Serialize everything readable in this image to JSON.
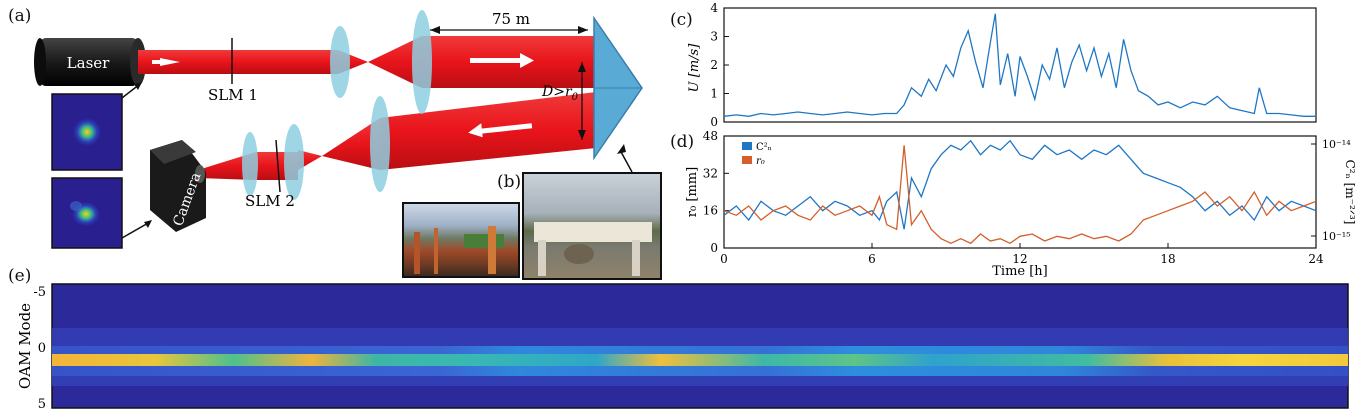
{
  "panels": {
    "a": "(a)",
    "b": "(b)",
    "c": "(c)",
    "d": "(d)",
    "e": "(e)"
  },
  "setup": {
    "laser_label": "Laser",
    "camera_label": "Camera",
    "slm1_label": "SLM 1",
    "slm2_label": "SLM 2",
    "distance_label": "75 m",
    "aperture_label": "D>r",
    "aperture_sub": "0",
    "beam_color": "#e8141b",
    "lens_color": "#8ecfe0",
    "prism_color": "#5aaad6"
  },
  "chart_data": [
    {
      "id": "c",
      "type": "line",
      "ylabel": "U [m/s]",
      "xlim": [
        0,
        24
      ],
      "ylim": [
        0,
        4
      ],
      "yticks": [
        "0",
        "1",
        "2",
        "3",
        "4"
      ],
      "color": "#1f77c4",
      "x": [
        0,
        0.5,
        1,
        1.5,
        2,
        2.5,
        3,
        3.5,
        4,
        4.5,
        5,
        5.5,
        6,
        6.5,
        7,
        7.3,
        7.6,
        8,
        8.3,
        8.6,
        9,
        9.3,
        9.6,
        9.9,
        10.2,
        10.5,
        10.8,
        11,
        11.2,
        11.5,
        11.8,
        12,
        12.3,
        12.6,
        12.9,
        13.2,
        13.5,
        13.8,
        14.1,
        14.4,
        14.7,
        15,
        15.3,
        15.6,
        15.9,
        16.2,
        16.5,
        16.8,
        17.2,
        17.6,
        18,
        18.5,
        19,
        19.5,
        20,
        20.5,
        21,
        21.5,
        21.7,
        22,
        22.5,
        23,
        23.5,
        24
      ],
      "y": [
        0.2,
        0.25,
        0.2,
        0.3,
        0.25,
        0.3,
        0.35,
        0.3,
        0.25,
        0.3,
        0.35,
        0.3,
        0.25,
        0.3,
        0.3,
        0.6,
        1.2,
        0.9,
        1.5,
        1.1,
        2.0,
        1.6,
        2.6,
        3.2,
        2.1,
        1.2,
        2.8,
        3.8,
        1.3,
        2.4,
        0.9,
        2.3,
        1.6,
        0.8,
        2.0,
        1.5,
        2.6,
        1.2,
        2.1,
        2.7,
        1.8,
        2.6,
        1.6,
        2.4,
        1.2,
        2.9,
        1.8,
        1.1,
        0.9,
        0.6,
        0.7,
        0.5,
        0.7,
        0.6,
        0.9,
        0.5,
        0.4,
        0.3,
        1.2,
        0.3,
        0.3,
        0.25,
        0.2,
        0.2
      ]
    },
    {
      "id": "d",
      "type": "line",
      "xlabel": "Time [h]",
      "ylabel_left": "r₀ [mm]",
      "ylabel_right": "C²ₙ [m⁻²ᐟ³]",
      "xlim": [
        0,
        24
      ],
      "ylim": [
        0,
        48
      ],
      "xticks": [
        "0",
        "6",
        "12",
        "18",
        "24"
      ],
      "yticks": [
        "0",
        "16",
        "32",
        "48"
      ],
      "right_ticks": [
        "10⁻¹⁴",
        "10⁻¹⁵"
      ],
      "series": [
        {
          "name": "C²ₙ",
          "color": "#1f77c4",
          "x": [
            0,
            0.5,
            1,
            1.5,
            2,
            2.5,
            3,
            3.5,
            4,
            4.5,
            5,
            5.5,
            6,
            6.3,
            6.6,
            7,
            7.3,
            7.6,
            8,
            8.4,
            8.8,
            9.2,
            9.6,
            10,
            10.4,
            10.8,
            11.2,
            11.6,
            12,
            12.5,
            13,
            13.5,
            14,
            14.5,
            15,
            15.5,
            16,
            16.5,
            17,
            17.5,
            18,
            18.5,
            19,
            19.5,
            20,
            20.5,
            21,
            21.5,
            22,
            22.5,
            23,
            23.5,
            24
          ],
          "y": [
            14,
            18,
            12,
            20,
            16,
            14,
            18,
            22,
            16,
            20,
            18,
            14,
            16,
            12,
            20,
            24,
            8,
            30,
            22,
            34,
            40,
            44,
            42,
            46,
            40,
            44,
            42,
            46,
            40,
            38,
            44,
            40,
            42,
            38,
            42,
            40,
            44,
            38,
            32,
            30,
            28,
            26,
            22,
            16,
            20,
            14,
            18,
            12,
            22,
            16,
            20,
            18,
            16
          ]
        },
        {
          "name": "r₀",
          "color": "#d35f2a",
          "x": [
            0,
            0.5,
            1,
            1.5,
            2,
            2.5,
            3,
            3.5,
            4,
            4.5,
            5,
            5.5,
            6,
            6.3,
            6.6,
            7,
            7.3,
            7.6,
            8,
            8.4,
            8.8,
            9.2,
            9.6,
            10,
            10.4,
            10.8,
            11.2,
            11.6,
            12,
            12.5,
            13,
            13.5,
            14,
            14.5,
            15,
            15.5,
            16,
            16.5,
            17,
            17.5,
            18,
            18.5,
            19,
            19.5,
            20,
            20.5,
            21,
            21.5,
            22,
            22.5,
            23,
            23.5,
            24
          ],
          "y": [
            16,
            14,
            18,
            12,
            16,
            18,
            14,
            12,
            18,
            14,
            16,
            18,
            14,
            22,
            10,
            8,
            44,
            10,
            16,
            8,
            4,
            2,
            4,
            2,
            6,
            3,
            4,
            2,
            5,
            6,
            3,
            5,
            4,
            6,
            4,
            5,
            3,
            6,
            12,
            14,
            16,
            18,
            20,
            24,
            18,
            22,
            16,
            24,
            14,
            20,
            16,
            18,
            20
          ]
        }
      ]
    },
    {
      "id": "e",
      "type": "heatmap",
      "ylabel": "OAM Mode",
      "yticks": [
        "-5",
        "0",
        "5"
      ]
    }
  ]
}
